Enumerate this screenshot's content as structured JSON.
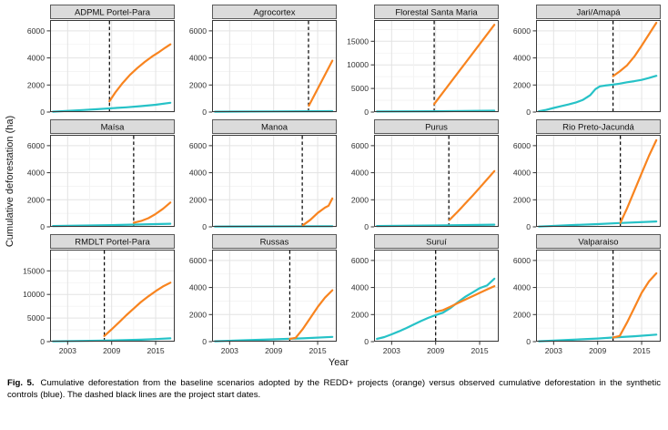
{
  "figure": {
    "y_axis_label": "Cumulative deforestation (ha)",
    "x_axis_label": "Year",
    "caption_tag": "Fig. 5.",
    "caption_text": "Cumulative deforestation from the baseline scenarios adopted by the REDD+ projects (orange) versus observed cumulative deforestation in the synthetic controls (blue). The dashed black lines are the project start dates."
  },
  "chart_data": {
    "type": "line",
    "layout": {
      "rows": 3,
      "cols": 4,
      "x_range": [
        2000.6,
        2017.6
      ],
      "x_ticks": [
        2003,
        2009,
        2015
      ],
      "x_minor": [
        2006,
        2012
      ],
      "grid": true,
      "legend": "none"
    },
    "colors": {
      "baseline_orange": "#F8841F",
      "observed_blue": "#26C2C7",
      "start_line": "#000000",
      "strip_bg": "#DBDBDB",
      "strip_border": "#5a5a5a",
      "panel_border": "#383838",
      "grid_major": "#E3E3E3",
      "grid_minor": "#F2F2F2",
      "tick_text": "#2f2f2f"
    },
    "series_names": {
      "orange": "REDD+ project baseline scenario",
      "blue": "Synthetic control (observed)"
    },
    "panels": [
      {
        "title": "ADPML Portel-Para",
        "start_year": 2008.7,
        "y_ticks": [
          0,
          2000,
          4000,
          6000
        ],
        "y_max": 6800,
        "blue": [
          [
            2001,
            30
          ],
          [
            2003,
            90
          ],
          [
            2005,
            150
          ],
          [
            2007,
            210
          ],
          [
            2009,
            280
          ],
          [
            2011,
            350
          ],
          [
            2013,
            440
          ],
          [
            2015,
            540
          ],
          [
            2017,
            690
          ]
        ],
        "orange": [
          [
            2008.7,
            800
          ],
          [
            2009.5,
            1450
          ],
          [
            2010.5,
            2150
          ],
          [
            2011.5,
            2750
          ],
          [
            2012.5,
            3250
          ],
          [
            2013.5,
            3700
          ],
          [
            2014.5,
            4100
          ],
          [
            2015.5,
            4450
          ],
          [
            2016.3,
            4750
          ],
          [
            2017,
            5000
          ]
        ]
      },
      {
        "title": "Agrocortex",
        "start_year": 2013.75,
        "y_ticks": [
          0,
          2000,
          4000,
          6000
        ],
        "y_max": 6800,
        "blue": [
          [
            2001,
            30
          ],
          [
            2009,
            50
          ],
          [
            2017,
            70
          ]
        ],
        "orange": [
          [
            2013.8,
            470
          ],
          [
            2017,
            3800
          ]
        ]
      },
      {
        "title": "Florestal Santa Maria",
        "start_year": 2008.8,
        "y_ticks": [
          0,
          5000,
          10000,
          15000
        ],
        "y_max": 19500,
        "blue": [
          [
            2001,
            120
          ],
          [
            2009,
            180
          ],
          [
            2017,
            280
          ]
        ],
        "orange": [
          [
            2008.8,
            1700
          ],
          [
            2017,
            18500
          ]
        ]
      },
      {
        "title": "Jari/Amapá",
        "start_year": 2011.1,
        "y_ticks": [
          0,
          2000,
          4000,
          6000
        ],
        "y_max": 6800,
        "blue": [
          [
            2001,
            60
          ],
          [
            2002,
            160
          ],
          [
            2003,
            300
          ],
          [
            2004,
            430
          ],
          [
            2005,
            560
          ],
          [
            2006,
            700
          ],
          [
            2007,
            900
          ],
          [
            2008,
            1250
          ],
          [
            2008.7,
            1700
          ],
          [
            2009.3,
            1900
          ],
          [
            2010,
            1960
          ],
          [
            2011,
            2020
          ],
          [
            2012,
            2100
          ],
          [
            2013,
            2200
          ],
          [
            2014,
            2280
          ],
          [
            2015,
            2380
          ],
          [
            2016,
            2520
          ],
          [
            2017,
            2680
          ]
        ],
        "orange": [
          [
            2011.1,
            2650
          ],
          [
            2012,
            3000
          ],
          [
            2013,
            3450
          ],
          [
            2014,
            4100
          ],
          [
            2015,
            4900
          ],
          [
            2016,
            5750
          ],
          [
            2017,
            6600
          ]
        ]
      },
      {
        "title": "Maísa",
        "start_year": 2012.0,
        "y_ticks": [
          0,
          2000,
          4000,
          6000
        ],
        "y_max": 6800,
        "blue": [
          [
            2001,
            60
          ],
          [
            2009,
            130
          ],
          [
            2017,
            230
          ]
        ],
        "orange": [
          [
            2012,
            300
          ],
          [
            2013,
            430
          ],
          [
            2014,
            640
          ],
          [
            2015,
            950
          ],
          [
            2016,
            1330
          ],
          [
            2017,
            1800
          ]
        ]
      },
      {
        "title": "Manoa",
        "start_year": 2012.9,
        "y_ticks": [
          0,
          2000,
          4000,
          6000
        ],
        "y_max": 6800,
        "blue": [
          [
            2001,
            20
          ],
          [
            2017,
            50
          ]
        ],
        "orange": [
          [
            2013,
            120
          ],
          [
            2014,
            520
          ],
          [
            2015,
            1020
          ],
          [
            2016,
            1420
          ],
          [
            2016.5,
            1560
          ],
          [
            2017,
            2100
          ]
        ]
      },
      {
        "title": "Purus",
        "start_year": 2010.8,
        "y_ticks": [
          0,
          2000,
          4000,
          6000
        ],
        "y_max": 6800,
        "blue": [
          [
            2001,
            60
          ],
          [
            2009,
            100
          ],
          [
            2017,
            160
          ]
        ],
        "orange": [
          [
            2010.9,
            520
          ],
          [
            2012,
            1120
          ],
          [
            2013,
            1700
          ],
          [
            2014,
            2280
          ],
          [
            2015,
            2880
          ],
          [
            2016,
            3500
          ],
          [
            2017,
            4120
          ]
        ]
      },
      {
        "title": "Rio Preto-Jacundá",
        "start_year": 2012.1,
        "y_ticks": [
          0,
          2000,
          4000,
          6000
        ],
        "y_max": 6800,
        "blue": [
          [
            2001,
            20
          ],
          [
            2005,
            120
          ],
          [
            2009,
            200
          ],
          [
            2012,
            280
          ],
          [
            2017,
            400
          ]
        ],
        "orange": [
          [
            2012.1,
            300
          ],
          [
            2013,
            1350
          ],
          [
            2014,
            2650
          ],
          [
            2015,
            3950
          ],
          [
            2016,
            5250
          ],
          [
            2017,
            6400
          ]
        ]
      },
      {
        "title": "RMDLT Portel-Para",
        "start_year": 2008.0,
        "y_ticks": [
          0,
          5000,
          10000,
          15000
        ],
        "y_max": 19500,
        "blue": [
          [
            2001,
            60
          ],
          [
            2005,
            150
          ],
          [
            2009,
            250
          ],
          [
            2013,
            400
          ],
          [
            2015,
            550
          ],
          [
            2017,
            700
          ]
        ],
        "orange": [
          [
            2008,
            1200
          ],
          [
            2009,
            2600
          ],
          [
            2010,
            4100
          ],
          [
            2011,
            5600
          ],
          [
            2012,
            7000
          ],
          [
            2013,
            8400
          ],
          [
            2014,
            9600
          ],
          [
            2015,
            10700
          ],
          [
            2016,
            11700
          ],
          [
            2017,
            12500
          ]
        ]
      },
      {
        "title": "Russas",
        "start_year": 2011.2,
        "y_ticks": [
          0,
          2000,
          4000,
          6000
        ],
        "y_max": 6800,
        "blue": [
          [
            2001,
            30
          ],
          [
            2005,
            100
          ],
          [
            2009,
            170
          ],
          [
            2013,
            240
          ],
          [
            2017,
            350
          ]
        ],
        "orange": [
          [
            2011.2,
            200
          ],
          [
            2012,
            280
          ],
          [
            2013,
            950
          ],
          [
            2014,
            1750
          ],
          [
            2015,
            2550
          ],
          [
            2016,
            3250
          ],
          [
            2017,
            3800
          ]
        ]
      },
      {
        "title": "Suruí",
        "start_year": 2009.0,
        "y_ticks": [
          0,
          2000,
          4000,
          6000
        ],
        "y_max": 6800,
        "blue": [
          [
            2001,
            200
          ],
          [
            2002,
            340
          ],
          [
            2003,
            540
          ],
          [
            2004,
            760
          ],
          [
            2005,
            1000
          ],
          [
            2006,
            1260
          ],
          [
            2007,
            1520
          ],
          [
            2008,
            1760
          ],
          [
            2009,
            1960
          ],
          [
            2010,
            2140
          ],
          [
            2011,
            2480
          ],
          [
            2012,
            2900
          ],
          [
            2013,
            3300
          ],
          [
            2014,
            3620
          ],
          [
            2015,
            3950
          ],
          [
            2016,
            4150
          ],
          [
            2017,
            4650
          ]
        ],
        "orange": [
          [
            2009,
            2200
          ],
          [
            2010,
            2330
          ],
          [
            2011,
            2580
          ],
          [
            2012,
            2840
          ],
          [
            2013,
            3100
          ],
          [
            2014,
            3350
          ],
          [
            2015,
            3600
          ],
          [
            2016,
            3850
          ],
          [
            2017,
            4100
          ]
        ]
      },
      {
        "title": "Valparaiso",
        "start_year": 2011.1,
        "y_ticks": [
          0,
          2000,
          4000,
          6000
        ],
        "y_max": 6800,
        "blue": [
          [
            2001,
            30
          ],
          [
            2005,
            130
          ],
          [
            2009,
            230
          ],
          [
            2011,
            300
          ],
          [
            2014,
            400
          ],
          [
            2017,
            520
          ]
        ],
        "orange": [
          [
            2011.1,
            300
          ],
          [
            2012,
            420
          ],
          [
            2013,
            1400
          ],
          [
            2014,
            2500
          ],
          [
            2015,
            3600
          ],
          [
            2016,
            4450
          ],
          [
            2017,
            5050
          ]
        ]
      }
    ]
  }
}
